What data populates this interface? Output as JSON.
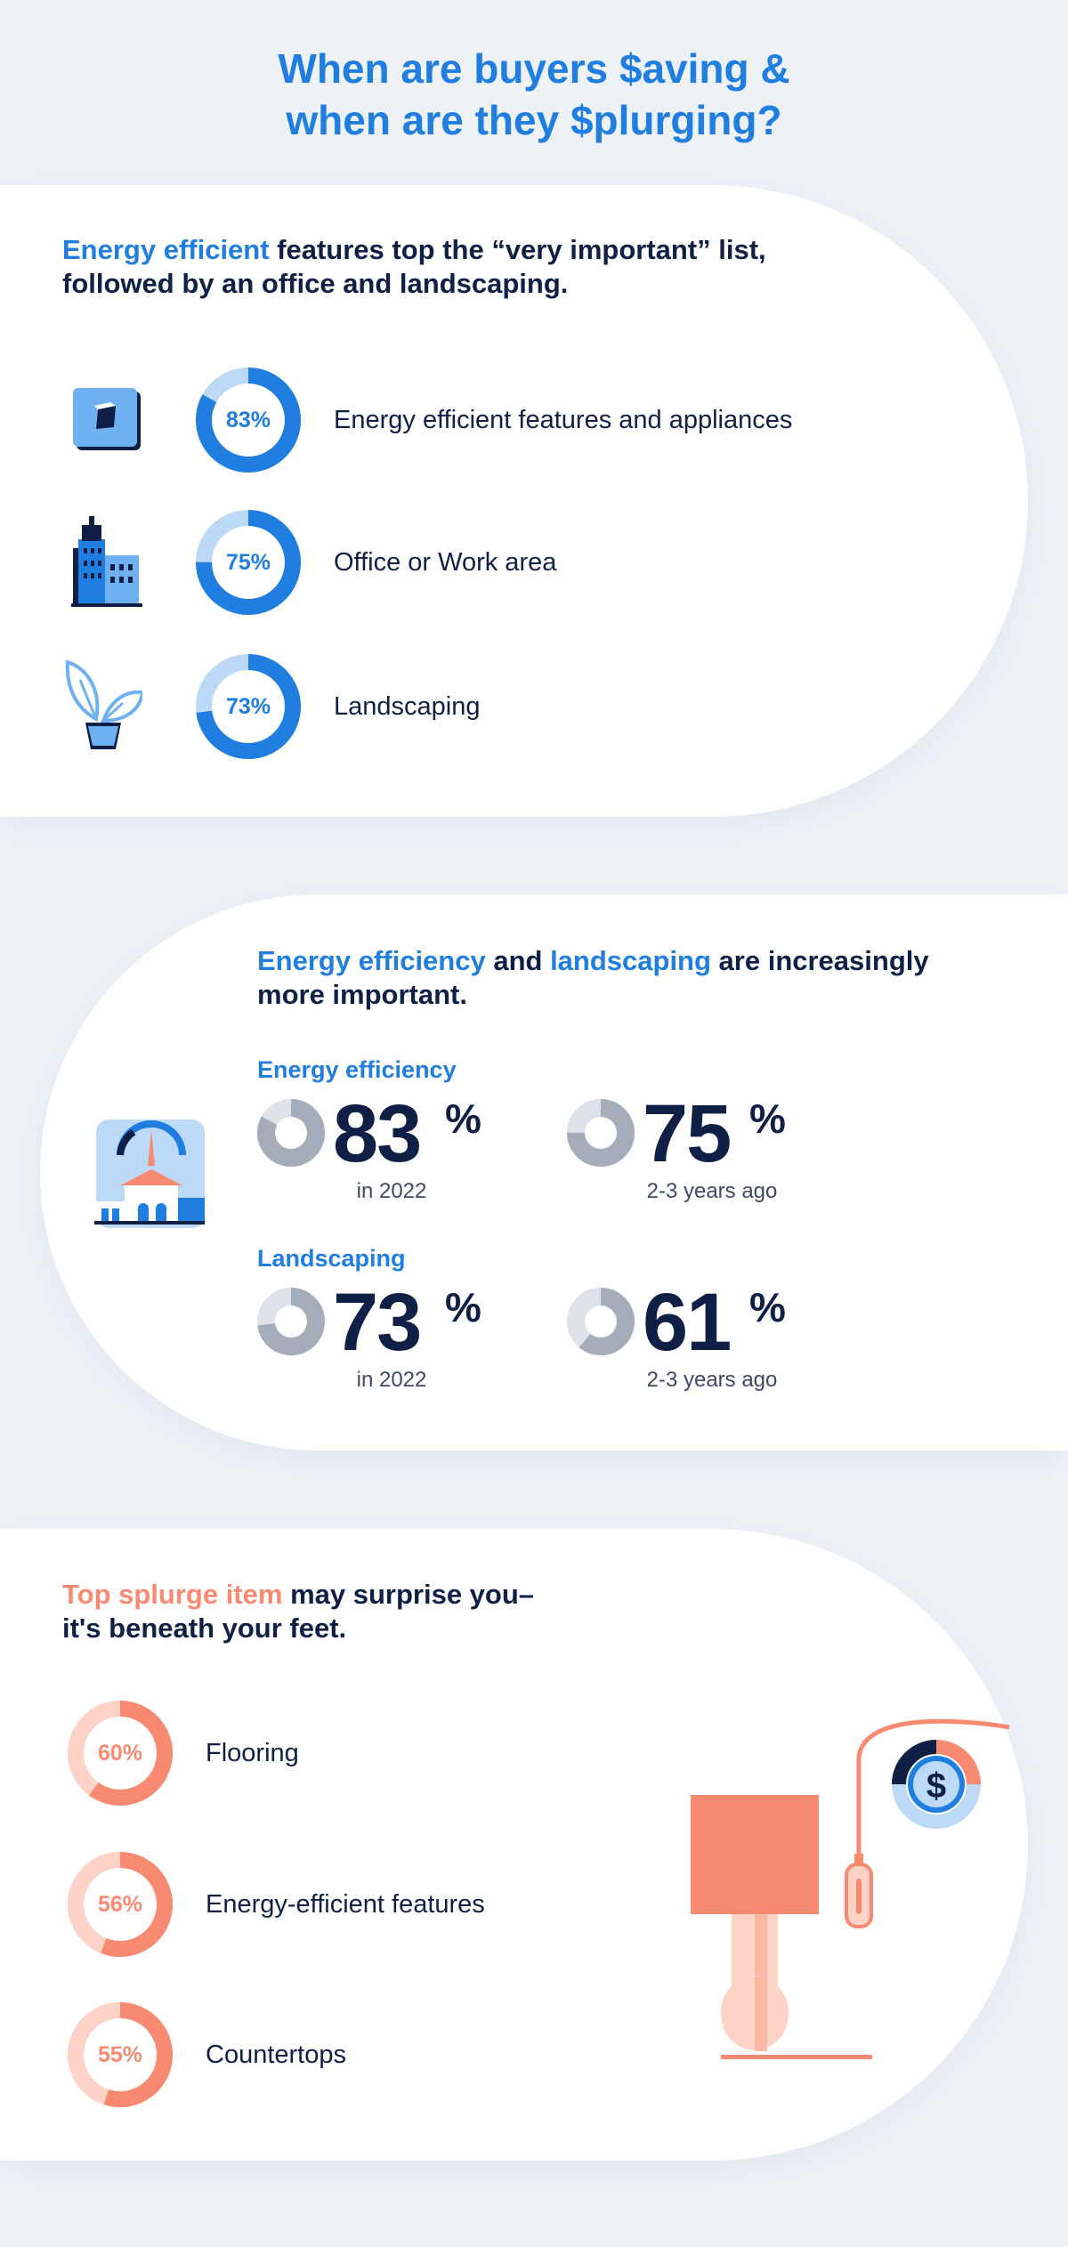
{
  "title": {
    "line1": "When are buyers $aving &",
    "line2": "when are they $plurging?"
  },
  "section1": {
    "heading_highlight": "Energy efficient",
    "heading_rest": " features top the “very important” list, followed by an office and landscaping.",
    "items": [
      {
        "percent_label": "83%",
        "value": 83,
        "label": "Energy efficient features and appliances",
        "icon": "cube-icon"
      },
      {
        "percent_label": "75%",
        "value": 75,
        "label": "Office or Work area",
        "icon": "building-icon"
      },
      {
        "percent_label": "73%",
        "value": 73,
        "label": "Landscaping",
        "icon": "plant-icon"
      }
    ],
    "accent_color": "#1f7ee0",
    "track_color": "#bcdaf8"
  },
  "section2": {
    "heading_part1": "Energy efficiency",
    "heading_part2": " and ",
    "heading_part3": "landscaping",
    "heading_part4": " are increasingly more important.",
    "icon": "house-gauge-icon",
    "groups": [
      {
        "title": "Energy efficiency",
        "current": {
          "number": "83",
          "pct_sign": "%",
          "caption": "in 2022",
          "value": 83
        },
        "previous": {
          "number": "75",
          "pct_sign": "%",
          "caption": "2-3 years ago",
          "value": 75
        }
      },
      {
        "title": "Landscaping",
        "current": {
          "number": "73",
          "pct_sign": "%",
          "caption": "in 2022",
          "value": 73
        },
        "previous": {
          "number": "61",
          "pct_sign": "%",
          "caption": "2-3 years ago",
          "value": 61
        }
      }
    ]
  },
  "section3": {
    "heading_highlight": "Top splurge item",
    "heading_rest": " may surprise you–",
    "heading_line2": "it's beneath your feet.",
    "icon": "lamp-dollar-icon",
    "items": [
      {
        "percent_label": "60%",
        "value": 60,
        "label": "Flooring"
      },
      {
        "percent_label": "56%",
        "value": 56,
        "label": "Energy-efficient features"
      },
      {
        "percent_label": "55%",
        "value": 55,
        "label": "Countertops"
      }
    ],
    "accent_color": "#f98a72",
    "track_color": "#fdd3c8"
  }
}
